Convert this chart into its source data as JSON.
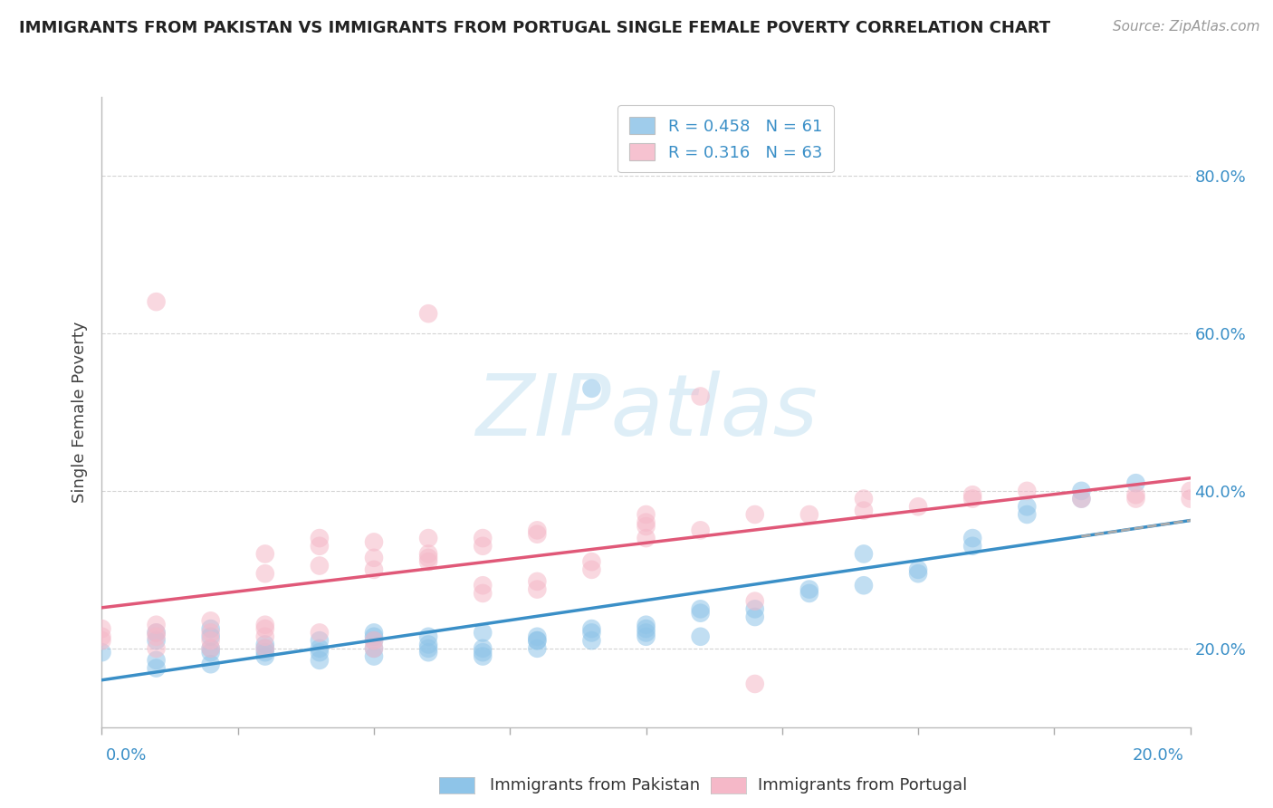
{
  "title": "IMMIGRANTS FROM PAKISTAN VS IMMIGRANTS FROM PORTUGAL SINGLE FEMALE POVERTY CORRELATION CHART",
  "source": "Source: ZipAtlas.com",
  "ylabel": "Single Female Poverty",
  "legend_entry1": "R = 0.458   N = 61",
  "legend_entry2": "R = 0.316   N = 63",
  "legend_label1": "Immigrants from Pakistan",
  "legend_label2": "Immigrants from Portugal",
  "pakistan_color": "#8ec4e8",
  "portugal_color": "#f5b8c8",
  "pakistan_line_color": "#3a8fc7",
  "portugal_line_color": "#e05878",
  "background_color": "#ffffff",
  "grid_color": "#d4d4d4",
  "xlim": [
    0.0,
    0.2
  ],
  "ylim": [
    0.1,
    0.9
  ],
  "yticks": [
    0.2,
    0.4,
    0.6,
    0.8
  ],
  "pakistan_scatter_x": [
    0.0,
    0.01,
    0.01,
    0.01,
    0.01,
    0.02,
    0.02,
    0.02,
    0.02,
    0.02,
    0.03,
    0.03,
    0.03,
    0.03,
    0.04,
    0.04,
    0.04,
    0.04,
    0.05,
    0.05,
    0.05,
    0.05,
    0.05,
    0.06,
    0.06,
    0.06,
    0.06,
    0.07,
    0.07,
    0.07,
    0.07,
    0.08,
    0.08,
    0.08,
    0.08,
    0.09,
    0.09,
    0.09,
    0.09,
    0.1,
    0.1,
    0.1,
    0.1,
    0.11,
    0.11,
    0.11,
    0.12,
    0.12,
    0.13,
    0.13,
    0.14,
    0.14,
    0.15,
    0.15,
    0.16,
    0.16,
    0.17,
    0.17,
    0.18,
    0.18,
    0.19
  ],
  "pakistan_scatter_y": [
    0.195,
    0.22,
    0.185,
    0.21,
    0.175,
    0.2,
    0.195,
    0.18,
    0.215,
    0.225,
    0.19,
    0.205,
    0.195,
    0.2,
    0.185,
    0.21,
    0.2,
    0.195,
    0.19,
    0.215,
    0.2,
    0.22,
    0.21,
    0.195,
    0.2,
    0.205,
    0.215,
    0.19,
    0.2,
    0.22,
    0.195,
    0.21,
    0.2,
    0.21,
    0.215,
    0.22,
    0.225,
    0.21,
    0.53,
    0.22,
    0.215,
    0.225,
    0.23,
    0.245,
    0.25,
    0.215,
    0.25,
    0.24,
    0.27,
    0.275,
    0.28,
    0.32,
    0.3,
    0.295,
    0.33,
    0.34,
    0.37,
    0.38,
    0.39,
    0.4,
    0.41
  ],
  "portugal_scatter_x": [
    0.0,
    0.0,
    0.0,
    0.01,
    0.01,
    0.01,
    0.01,
    0.01,
    0.02,
    0.02,
    0.02,
    0.02,
    0.03,
    0.03,
    0.03,
    0.03,
    0.03,
    0.03,
    0.04,
    0.04,
    0.04,
    0.04,
    0.05,
    0.05,
    0.05,
    0.05,
    0.05,
    0.06,
    0.06,
    0.06,
    0.06,
    0.06,
    0.07,
    0.07,
    0.07,
    0.07,
    0.08,
    0.08,
    0.08,
    0.08,
    0.09,
    0.09,
    0.1,
    0.1,
    0.1,
    0.1,
    0.11,
    0.11,
    0.12,
    0.12,
    0.12,
    0.13,
    0.14,
    0.14,
    0.15,
    0.16,
    0.16,
    0.17,
    0.18,
    0.19,
    0.19,
    0.2,
    0.2
  ],
  "portugal_scatter_y": [
    0.21,
    0.225,
    0.215,
    0.22,
    0.23,
    0.2,
    0.215,
    0.64,
    0.235,
    0.2,
    0.21,
    0.22,
    0.225,
    0.23,
    0.295,
    0.32,
    0.215,
    0.2,
    0.34,
    0.33,
    0.305,
    0.22,
    0.315,
    0.335,
    0.3,
    0.2,
    0.21,
    0.32,
    0.315,
    0.34,
    0.31,
    0.625,
    0.33,
    0.34,
    0.27,
    0.28,
    0.35,
    0.345,
    0.285,
    0.275,
    0.3,
    0.31,
    0.34,
    0.36,
    0.355,
    0.37,
    0.52,
    0.35,
    0.37,
    0.26,
    0.155,
    0.37,
    0.39,
    0.375,
    0.38,
    0.39,
    0.395,
    0.4,
    0.39,
    0.39,
    0.395,
    0.4,
    0.39
  ],
  "dashed_line_color": "#aaaaaa",
  "watermark_text": "ZIPatlas",
  "watermark_color": "#d0e8f4",
  "title_fontsize": 13,
  "source_fontsize": 11,
  "axis_label_fontsize": 13,
  "legend_fontsize": 13,
  "right_tick_color": "#3a8fc7"
}
